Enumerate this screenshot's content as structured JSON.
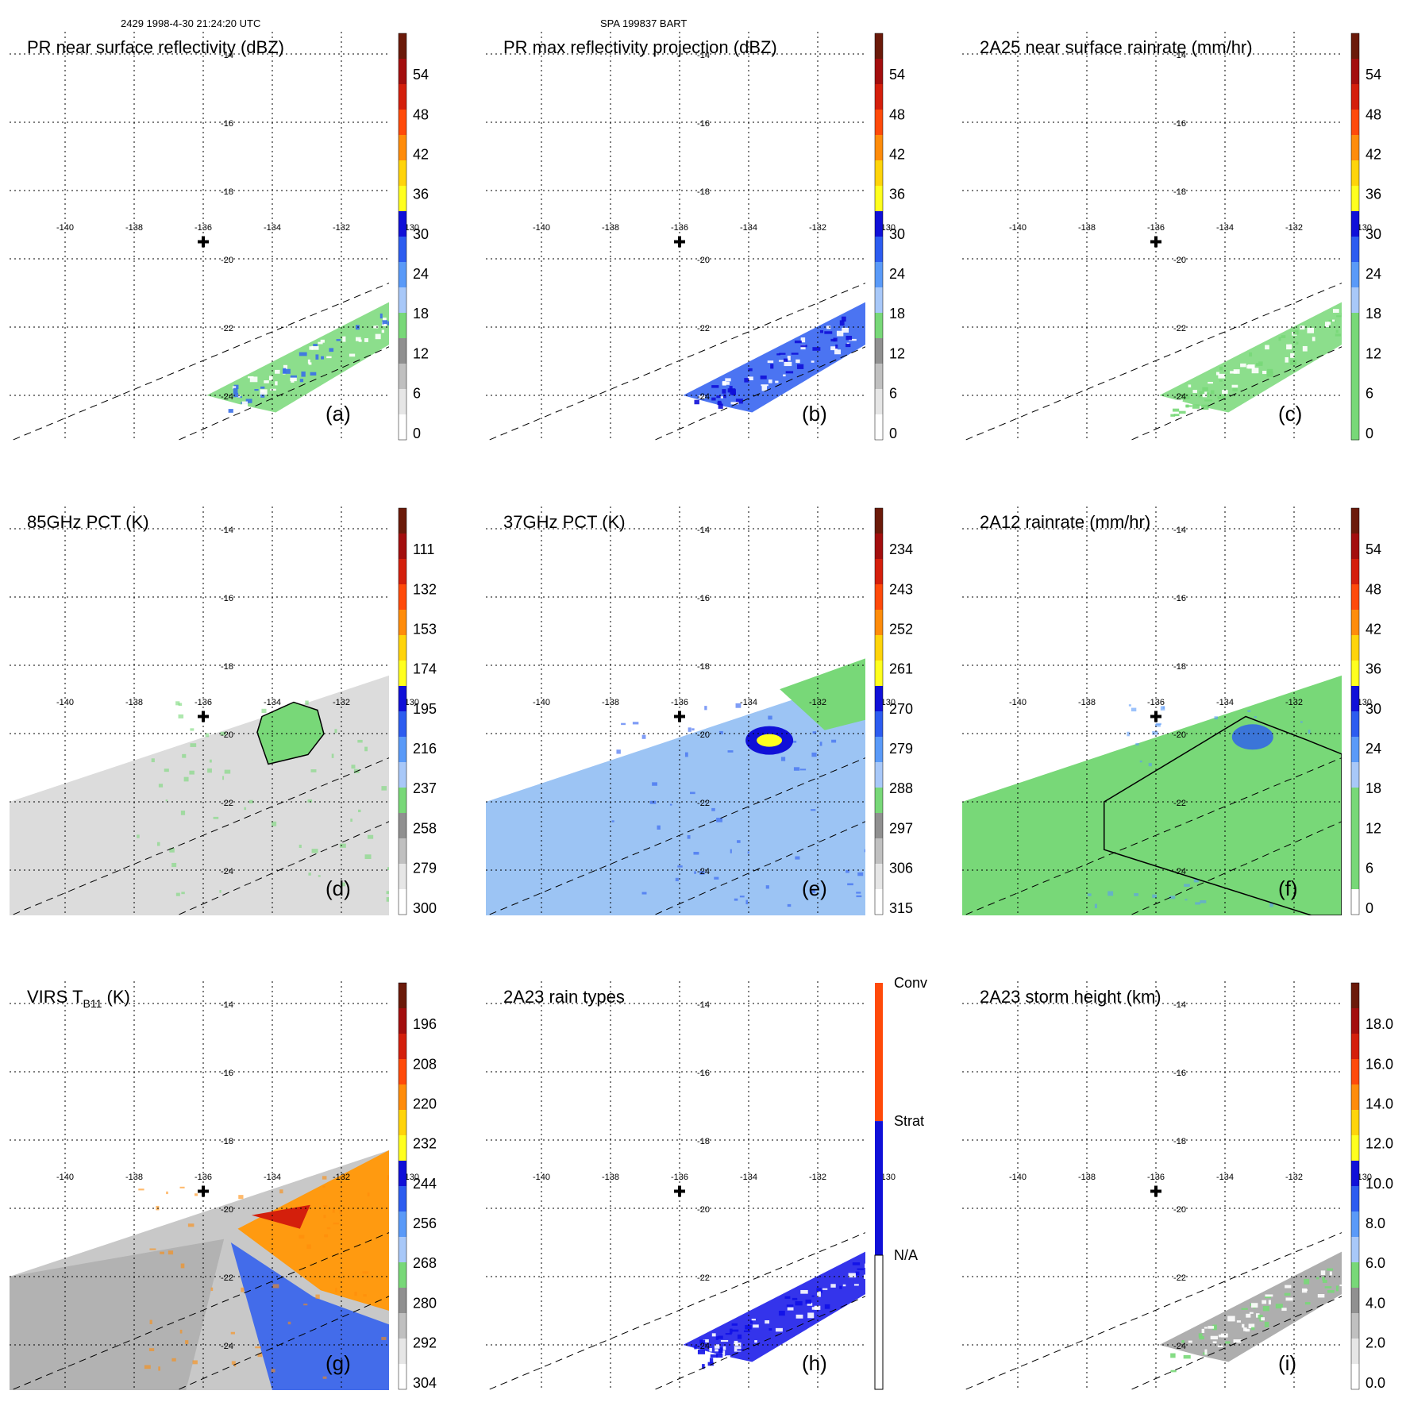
{
  "header": {
    "left": "2429 1998-4-30 21:24:20 UTC",
    "center": "SPA 199837 BART"
  },
  "map": {
    "lon_labels": [
      "-140",
      "-138",
      "-136",
      "-134",
      "-132",
      "-130"
    ],
    "lat_labels": [
      "-14",
      "-16",
      "-18",
      "-20",
      "-22",
      "-24"
    ],
    "center_marker": {
      "lon": -136,
      "lat": -19.5
    }
  },
  "chart_data": [
    {
      "type": "heatmap",
      "id": "a",
      "title": "PR near surface reflectivity (dBZ)",
      "panel_label": "(a)",
      "colorbar": {
        "ticks": [
          "54",
          "48",
          "42",
          "36",
          "30",
          "24",
          "18",
          "12",
          "6",
          "0"
        ],
        "colors": [
          "#6b1a0a",
          "#a30e0e",
          "#d41f0c",
          "#ff4a0a",
          "#ff8c0a",
          "#ffd40a",
          "#ffff1e",
          "#1010d8",
          "#2c5cf0",
          "#5a9af8",
          "#a8c8f8",
          "#78d878",
          "#909090",
          "#c0c0c0",
          "#e6e6e6",
          "#ffffff"
        ]
      },
      "field": {
        "kind": "swath",
        "base": "#78d878",
        "spots": "#3a6fe8"
      }
    },
    {
      "type": "heatmap",
      "id": "b",
      "title": "PR max reflectivity projection (dBZ)",
      "panel_label": "(b)",
      "colorbar": {
        "ticks": [
          "54",
          "48",
          "42",
          "36",
          "30",
          "24",
          "18",
          "12",
          "6",
          "0"
        ],
        "colors": [
          "#6b1a0a",
          "#a30e0e",
          "#d41f0c",
          "#ff4a0a",
          "#ff8c0a",
          "#ffd40a",
          "#ffff1e",
          "#1010d8",
          "#2c5cf0",
          "#5a9af8",
          "#a8c8f8",
          "#78d878",
          "#909090",
          "#c0c0c0",
          "#e6e6e6",
          "#ffffff"
        ]
      },
      "field": {
        "kind": "swath",
        "base": "#2c5cf0",
        "spots": "#1010d8"
      }
    },
    {
      "type": "heatmap",
      "id": "c",
      "title": "2A25 near surface rainrate (mm/hr)",
      "panel_label": "(c)",
      "colorbar": {
        "ticks": [
          "54",
          "48",
          "42",
          "36",
          "30",
          "24",
          "18",
          "12",
          "6",
          "0"
        ],
        "colors": [
          "#6b1a0a",
          "#a30e0e",
          "#d41f0c",
          "#ff4a0a",
          "#ff8c0a",
          "#ffd40a",
          "#ffff1e",
          "#1010d8",
          "#2c5cf0",
          "#5a9af8",
          "#a8c8f8",
          "#78d878",
          "#78d878",
          "#78d878",
          "#78d878",
          "#78d878"
        ]
      },
      "field": {
        "kind": "swath",
        "base": "#78d878",
        "spots": "#78d878"
      }
    },
    {
      "type": "heatmap",
      "id": "d",
      "title": "85GHz PCT (K)",
      "panel_label": "(d)",
      "colorbar": {
        "ticks": [
          "111",
          "132",
          "153",
          "174",
          "195",
          "216",
          "237",
          "258",
          "279",
          "300"
        ],
        "colors": [
          "#6b1a0a",
          "#a30e0e",
          "#d41f0c",
          "#ff4a0a",
          "#ff8c0a",
          "#ffd40a",
          "#ffff1e",
          "#1010d8",
          "#2c5cf0",
          "#5a9af8",
          "#a8c8f8",
          "#78d878",
          "#909090",
          "#c0c0c0",
          "#e6e6e6",
          "#ffffff"
        ]
      },
      "field": {
        "kind": "wedge",
        "base": "#dcdcdc",
        "spots": "#78d878"
      }
    },
    {
      "type": "heatmap",
      "id": "e",
      "title": "37GHz PCT (K)",
      "panel_label": "(e)",
      "colorbar": {
        "ticks": [
          "234",
          "243",
          "252",
          "261",
          "270",
          "279",
          "288",
          "297",
          "306",
          "315"
        ],
        "colors": [
          "#6b1a0a",
          "#a30e0e",
          "#d41f0c",
          "#ff4a0a",
          "#ff8c0a",
          "#ffd40a",
          "#ffff1e",
          "#1010d8",
          "#2c5cf0",
          "#5a9af8",
          "#a8c8f8",
          "#78d878",
          "#909090",
          "#c0c0c0",
          "#e6e6e6",
          "#ffffff"
        ]
      },
      "field": {
        "kind": "wedge",
        "base": "#9cc4f4",
        "spots": "#2c5cf0"
      }
    },
    {
      "type": "heatmap",
      "id": "f",
      "title": "2A12 rainrate (mm/hr)",
      "panel_label": "(f)",
      "colorbar": {
        "ticks": [
          "54",
          "48",
          "42",
          "36",
          "30",
          "24",
          "18",
          "12",
          "6",
          "0"
        ],
        "colors": [
          "#6b1a0a",
          "#a30e0e",
          "#d41f0c",
          "#ff4a0a",
          "#ff8c0a",
          "#ffd40a",
          "#ffff1e",
          "#1010d8",
          "#2c5cf0",
          "#5a9af8",
          "#a8c8f8",
          "#78d878",
          "#78d878",
          "#78d878",
          "#78d878",
          "#ffffff"
        ]
      },
      "field": {
        "kind": "wedge-partial",
        "base": "#78d878",
        "spots": "#5a9af8"
      }
    },
    {
      "type": "heatmap",
      "id": "g",
      "title": "VIRS T_B11 (K)",
      "title_main": "VIRS T",
      "title_sub": "B11",
      "title_end": " (K)",
      "panel_label": "(g)",
      "colorbar": {
        "ticks": [
          "196",
          "208",
          "220",
          "232",
          "244",
          "256",
          "268",
          "280",
          "292",
          "304"
        ],
        "colors": [
          "#6b1a0a",
          "#a30e0e",
          "#d41f0c",
          "#ff4a0a",
          "#ff8c0a",
          "#ffd40a",
          "#ffff1e",
          "#1010d8",
          "#2c5cf0",
          "#5a9af8",
          "#a8c8f8",
          "#78d878",
          "#909090",
          "#c0c0c0",
          "#e6e6e6",
          "#ffffff"
        ]
      },
      "field": {
        "kind": "wedge-virs",
        "base": "#c8c8c8",
        "spots": "#ff8c0a"
      }
    },
    {
      "type": "heatmap",
      "id": "h",
      "title": "2A23 rain types",
      "panel_label": "(h)",
      "colorbar": {
        "categorical": true,
        "ticks": [
          "Conv",
          "Strat",
          "N/A"
        ],
        "colors": [
          "#ff4a0a",
          "#1010d8",
          "#ffffff"
        ]
      },
      "field": {
        "kind": "swath",
        "base": "#1010e8",
        "spots": "#1010e8"
      }
    },
    {
      "type": "heatmap",
      "id": "i",
      "title": "2A23 storm height (km)",
      "panel_label": "(i)",
      "colorbar": {
        "ticks": [
          "18.0",
          "16.0",
          "14.0",
          "12.0",
          "10.0",
          "8.0",
          "6.0",
          "4.0",
          "2.0",
          "0.0"
        ],
        "colors": [
          "#6b1a0a",
          "#a30e0e",
          "#d41f0c",
          "#ff4a0a",
          "#ff8c0a",
          "#ffd40a",
          "#ffff1e",
          "#1010d8",
          "#2c5cf0",
          "#5a9af8",
          "#a8c8f8",
          "#78d878",
          "#909090",
          "#c0c0c0",
          "#e6e6e6",
          "#ffffff"
        ]
      },
      "field": {
        "kind": "swath",
        "base": "#a0a0a0",
        "spots": "#78d878"
      }
    }
  ]
}
